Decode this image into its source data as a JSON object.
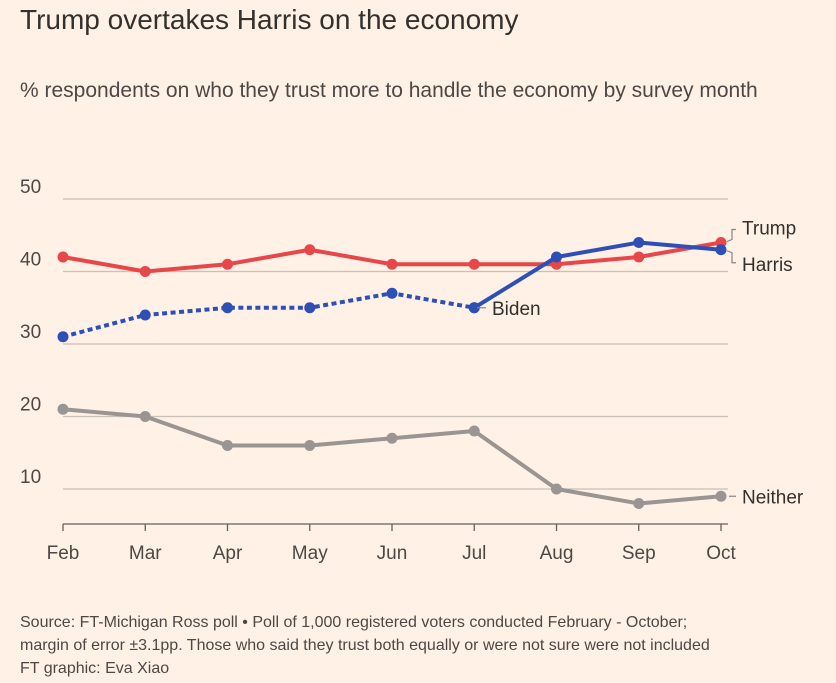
{
  "title": "Trump overtakes Harris on the economy",
  "subtitle": "% respondents on who they trust more to handle the economy by survey month",
  "footer": {
    "source": "Source: FT-Michigan Ross poll • Poll of 1,000 registered voters conducted February - October;",
    "note": "margin of error ±3.1pp. Those who said they trust both equally or were not sure were not included",
    "credit": "FT graphic: Eva Xiao"
  },
  "colors": {
    "background": "#fff1e5",
    "trump": "#e8474a",
    "democrat": "#2e4fb5",
    "neither": "#9a9592",
    "grid": "#c9c0b7",
    "axis": "#66605c"
  },
  "chart_data": {
    "type": "line",
    "categories": [
      "Feb",
      "Mar",
      "Apr",
      "May",
      "Jun",
      "Jul",
      "Aug",
      "Sep",
      "Oct"
    ],
    "ylim": [
      5,
      50
    ],
    "yticks": [
      10,
      20,
      30,
      40,
      50
    ],
    "grid": true,
    "xlabel": "",
    "ylabel": "",
    "series": [
      {
        "name": "Trump",
        "values": [
          42,
          40,
          41,
          43,
          41,
          41,
          41,
          42,
          44
        ],
        "color": "#e8474a",
        "style": "solid"
      },
      {
        "name": "Biden",
        "values": [
          31,
          34,
          35,
          35,
          37,
          35,
          null,
          null,
          null
        ],
        "color": "#2e4fb5",
        "style": "dotted"
      },
      {
        "name": "Harris",
        "values": [
          null,
          null,
          null,
          null,
          null,
          35,
          42,
          44,
          43
        ],
        "color": "#2e4fb5",
        "style": "solid"
      },
      {
        "name": "Neither",
        "values": [
          21,
          20,
          16,
          16,
          17,
          18,
          10,
          8,
          9
        ],
        "color": "#9a9592",
        "style": "solid"
      }
    ]
  }
}
